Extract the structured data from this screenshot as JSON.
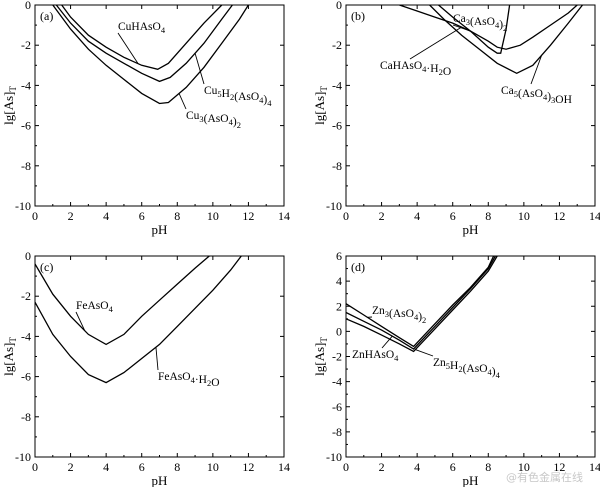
{
  "watermark": "@有色金属在线",
  "chart_data": [
    {
      "type": "line",
      "panel_label": "(a)",
      "xlabel": "pH",
      "ylabel": "lg[As]T",
      "xlim": [
        0,
        14
      ],
      "ylim": [
        -10,
        0
      ],
      "xticks": [
        0,
        2,
        4,
        6,
        8,
        10,
        12,
        14
      ],
      "yticks": [
        0,
        -2,
        -4,
        -6,
        -8,
        -10
      ],
      "series": [
        {
          "name": "CuHAsO4",
          "x": [
            1.5,
            2,
            3,
            4,
            5,
            6,
            6.9,
            7.5,
            8.5,
            9.5,
            10.5
          ],
          "y": [
            0,
            -0.6,
            -1.5,
            -2.1,
            -2.6,
            -3.0,
            -3.2,
            -2.9,
            -1.9,
            -0.9,
            0
          ]
        },
        {
          "name": "Cu5H2(AsO4)4",
          "x": [
            1.2,
            2,
            3,
            4,
            5,
            6,
            7,
            7.6,
            8.5,
            9.5,
            10.5,
            11.1
          ],
          "y": [
            0,
            -0.9,
            -1.8,
            -2.4,
            -2.9,
            -3.4,
            -3.8,
            -3.6,
            -2.9,
            -1.9,
            -0.7,
            0
          ]
        },
        {
          "name": "Cu3(AsO4)2",
          "x": [
            1.0,
            2,
            3,
            4,
            5,
            6,
            7,
            7.5,
            8.5,
            9.5,
            10.5,
            11.5,
            12.0
          ],
          "y": [
            0,
            -1.2,
            -2.2,
            -3.0,
            -3.7,
            -4.4,
            -4.9,
            -4.85,
            -4.1,
            -3.1,
            -1.9,
            -0.7,
            0
          ]
        }
      ],
      "annotations": [
        {
          "main": "CuHAsO",
          "sub1": "4",
          "mid": "",
          "sub2": "",
          "end": "",
          "target_series": 0,
          "target_x": 5.8
        },
        {
          "main": "Cu",
          "sub1": "5",
          "mid": "H",
          "sub2": "2",
          "end": "(AsO",
          "sub3": "4",
          "end2": ")",
          "sub4": "4",
          "target_series": 1,
          "target_x": 9.0
        },
        {
          "main": "Cu",
          "sub1": "3",
          "mid": "(AsO",
          "sub2": "4",
          "end": ")",
          "sub3": "2",
          "target_series": 2,
          "target_x": 8.1
        }
      ]
    },
    {
      "type": "line",
      "panel_label": "(b)",
      "xlabel": "pH",
      "ylabel": "lg[As]T",
      "xlim": [
        0,
        14
      ],
      "ylim": [
        -10,
        0
      ],
      "xticks": [
        0,
        2,
        4,
        6,
        8,
        10,
        12,
        14
      ],
      "yticks": [
        0,
        -2,
        -4,
        -6,
        -8,
        -10
      ],
      "series": [
        {
          "name": "CaHAsO4·H2O",
          "x": [
            3.0,
            4,
            5,
            6,
            7,
            8,
            8.5,
            9.0,
            9.8,
            10.5,
            11.5,
            12.5,
            13.0
          ],
          "y": [
            0,
            -0.3,
            -0.6,
            -0.9,
            -1.3,
            -1.8,
            -2.1,
            -2.2,
            -2.0,
            -1.6,
            -1.0,
            -0.4,
            0
          ]
        },
        {
          "name": "Ca3(AsO4)2",
          "x": [
            5.2,
            6,
            7,
            8,
            8.5,
            8.7,
            9.0,
            9.2
          ],
          "y": [
            0,
            -0.6,
            -1.3,
            -2.1,
            -2.4,
            -2.4,
            -1.2,
            0
          ]
        },
        {
          "name": "Ca5(AsO4)3OH",
          "x": [
            4.7,
            5.5,
            6.5,
            7.5,
            8.5,
            9.6,
            10.5,
            11.5,
            12.5,
            13.3
          ],
          "y": [
            0,
            -0.7,
            -1.5,
            -2.2,
            -2.9,
            -3.4,
            -3.0,
            -2.0,
            -0.9,
            0
          ]
        }
      ],
      "annotations": [
        {
          "text": "Ca3(AsO4)2",
          "target_series": 1,
          "target_x": 7.0
        },
        {
          "text": "CaHAsO4·H2O",
          "target_series": 0,
          "target_x": 6.5
        },
        {
          "text": "Ca5(AsO4)3OH",
          "target_series": 2,
          "target_x": 11.0
        }
      ]
    },
    {
      "type": "line",
      "panel_label": "(c)",
      "xlabel": "pH",
      "ylabel": "lg[As]T",
      "xlim": [
        0,
        14
      ],
      "ylim": [
        -10,
        0
      ],
      "xticks": [
        0,
        2,
        4,
        6,
        8,
        10,
        12,
        14
      ],
      "yticks": [
        0,
        -2,
        -4,
        -6,
        -8,
        -10
      ],
      "series": [
        {
          "name": "FeAsO4",
          "x": [
            0,
            1,
            2,
            3,
            4,
            5,
            6,
            7,
            8,
            9,
            9.8
          ],
          "y": [
            -0.4,
            -1.9,
            -3.0,
            -3.9,
            -4.4,
            -3.9,
            -3.0,
            -2.2,
            -1.4,
            -0.6,
            0
          ]
        },
        {
          "name": "FeAsO4·H2O",
          "x": [
            0,
            1,
            2,
            3,
            4,
            5,
            6,
            7,
            8,
            9,
            10,
            11,
            11.6
          ],
          "y": [
            -2.3,
            -3.9,
            -5.0,
            -5.9,
            -6.3,
            -5.8,
            -5.1,
            -4.4,
            -3.5,
            -2.6,
            -1.7,
            -0.7,
            0
          ]
        }
      ],
      "annotations": [
        {
          "text": "FeAsO4",
          "target_series": 0,
          "target_x": 2.8
        },
        {
          "text": "FeAsO4·H2O",
          "target_series": 1,
          "target_x": 6.8
        }
      ]
    },
    {
      "type": "line",
      "panel_label": "(d)",
      "xlabel": "pH",
      "ylabel": "lg[As]T",
      "xlim": [
        0,
        14
      ],
      "ylim": [
        -10,
        6
      ],
      "xticks": [
        0,
        2,
        4,
        6,
        8,
        10,
        12,
        14
      ],
      "yticks": [
        6,
        4,
        2,
        0,
        -2,
        -4,
        -6,
        -8,
        -10
      ],
      "series": [
        {
          "name": "Zn3(AsO4)2",
          "x": [
            0,
            1,
            2,
            3,
            3.8,
            5,
            6,
            7,
            8,
            8.3
          ],
          "y": [
            2.2,
            1.3,
            0.4,
            -0.5,
            -1.2,
            0.6,
            2.1,
            3.5,
            5.1,
            6
          ]
        },
        {
          "name": "ZnHAsO4",
          "x": [
            0,
            1,
            2,
            3,
            3.8,
            5,
            6,
            7,
            8,
            8.4
          ],
          "y": [
            1.5,
            0.8,
            0.1,
            -0.7,
            -1.4,
            0.4,
            1.9,
            3.4,
            5.0,
            6
          ]
        },
        {
          "name": "Zn5H2(AsO4)4",
          "x": [
            0,
            1,
            2,
            3,
            3.8,
            5,
            6,
            7,
            8,
            8.5
          ],
          "y": [
            1.0,
            0.4,
            -0.3,
            -1.0,
            -1.6,
            0.2,
            1.7,
            3.2,
            4.8,
            6
          ]
        }
      ],
      "annotations": [
        {
          "text": "Zn3(AsO4)2",
          "target_series": 0,
          "target_x": 1.2
        },
        {
          "text": "ZnHAsO4",
          "target_series": 1,
          "target_x": 2.6
        },
        {
          "text": "Zn5H2(AsO4)4",
          "target_series": 2,
          "target_x": 3.9
        }
      ]
    }
  ]
}
